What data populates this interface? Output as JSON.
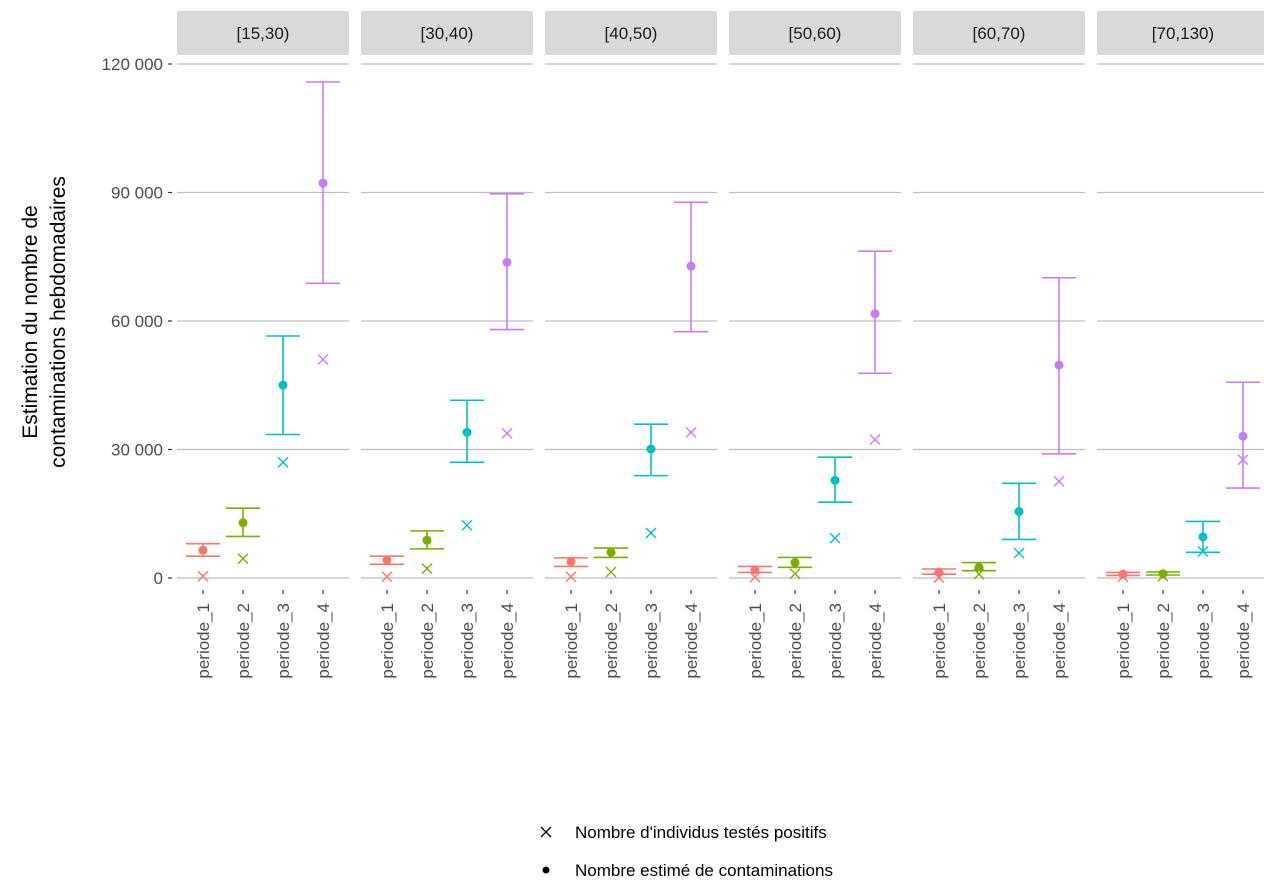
{
  "chart_data": {
    "type": "errorbar-faceted",
    "ylabel_line1": "Estimation du nombre de",
    "ylabel_line2": "contaminations hebdomadaires",
    "xlabel": "",
    "ylim": [
      0,
      120000
    ],
    "yticks": [
      0,
      30000,
      60000,
      90000,
      120000
    ],
    "ytick_labels": [
      "0",
      "30 000",
      "60 000",
      "90 000",
      "120 000"
    ],
    "grid": true,
    "categories": [
      "periode_1",
      "periode_2",
      "periode_3",
      "periode_4"
    ],
    "colors": [
      "#F8766D",
      "#7CAE00",
      "#00BFC4",
      "#C77CFF"
    ],
    "facets": [
      {
        "label": "[15,30)",
        "estimate": [
          6500,
          12900,
          45000,
          92200
        ],
        "lower": [
          5100,
          9700,
          33500,
          68800
        ],
        "upper": [
          8000,
          16300,
          56500,
          115800
        ],
        "positives": [
          400,
          4500,
          27000,
          51000
        ]
      },
      {
        "label": "[30,40)",
        "estimate": [
          4200,
          8800,
          34000,
          73700
        ],
        "lower": [
          3200,
          6800,
          27000,
          58000
        ],
        "upper": [
          5100,
          11000,
          41500,
          89700
        ],
        "positives": [
          300,
          2200,
          12300,
          33800
        ]
      },
      {
        "label": "[40,50)",
        "estimate": [
          3800,
          6000,
          30100,
          72800
        ],
        "lower": [
          2700,
          4800,
          23900,
          57500
        ],
        "upper": [
          4700,
          7000,
          35900,
          87700
        ],
        "positives": [
          300,
          1400,
          10500,
          34000
        ]
      },
      {
        "label": "[50,60)",
        "estimate": [
          1900,
          3600,
          22800,
          61700
        ],
        "lower": [
          1300,
          2500,
          17700,
          47800
        ],
        "upper": [
          2700,
          4800,
          28200,
          76300
        ],
        "positives": [
          200,
          1000,
          9300,
          32300
        ]
      },
      {
        "label": "[60,70)",
        "estimate": [
          1400,
          2500,
          15500,
          49700
        ],
        "lower": [
          900,
          1700,
          9000,
          29000
        ],
        "upper": [
          2100,
          3600,
          22100,
          70100
        ],
        "positives": [
          100,
          900,
          5800,
          22600
        ]
      },
      {
        "label": "[70,130)",
        "estimate": [
          900,
          1000,
          9600,
          33100
        ],
        "lower": [
          600,
          700,
          6000,
          21000
        ],
        "upper": [
          1300,
          1400,
          13200,
          45700
        ],
        "positives": [
          300,
          400,
          6200,
          27600
        ]
      }
    ],
    "legend": {
      "position": "bottom",
      "entries": [
        {
          "symbol": "cross",
          "label": "Nombre d'individus testés positifs"
        },
        {
          "symbol": "dot",
          "label": "Nombre estimé de contaminations"
        }
      ]
    },
    "strip_color": "#D9D9D9",
    "grid_color": "#BEBEBE"
  }
}
